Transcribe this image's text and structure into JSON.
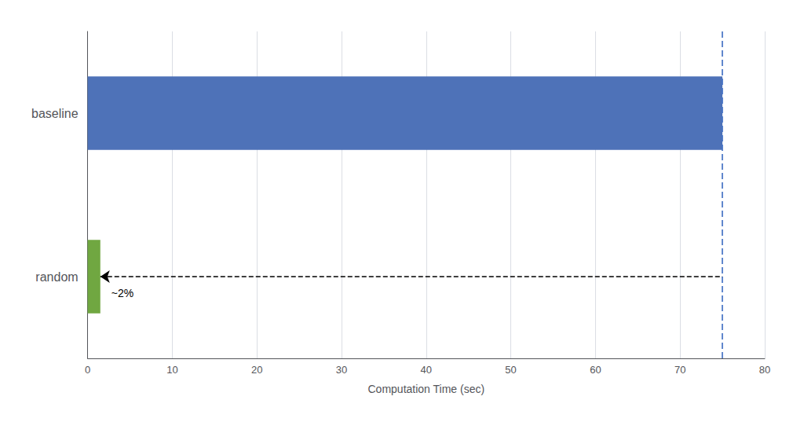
{
  "chart_data": {
    "type": "bar",
    "orientation": "horizontal",
    "categories": [
      "random",
      "baseline"
    ],
    "values": [
      1.5,
      75.0
    ],
    "colors": [
      "#70a741",
      "#4e72b8"
    ],
    "xlabel": "Computation Time (sec)",
    "xlim": [
      0,
      80
    ],
    "xticks": [
      0,
      10,
      20,
      30,
      40,
      50,
      60,
      70,
      80
    ],
    "grid": true,
    "reference_line": {
      "x": 75.0,
      "color": "#4472c4",
      "line_style": "dashed"
    },
    "annotations": [
      {
        "text": "~2%",
        "category": "random",
        "arrow_from": 75.0,
        "arrow_to": 1.5,
        "line_style": "dashed"
      }
    ]
  }
}
